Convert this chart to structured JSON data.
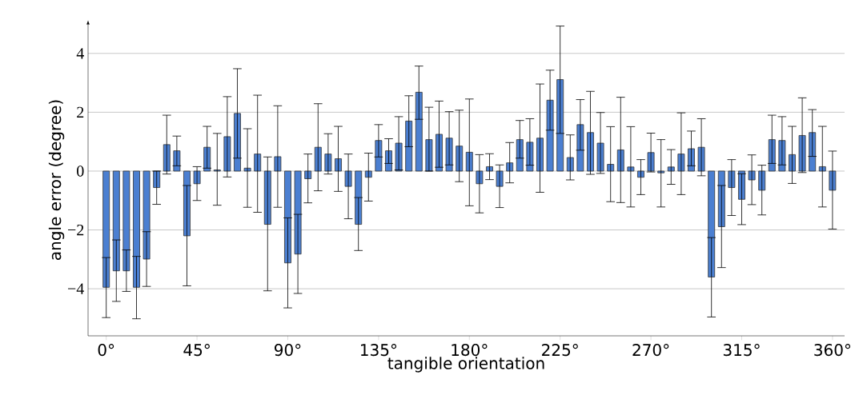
{
  "chart_data": {
    "type": "bar",
    "xlabel": "tangible orientation",
    "ylabel": "angle error (degree)",
    "x": [
      0,
      5,
      10,
      15,
      20,
      25,
      30,
      35,
      40,
      45,
      50,
      55,
      60,
      65,
      70,
      75,
      80,
      85,
      90,
      95,
      100,
      105,
      110,
      115,
      120,
      125,
      130,
      135,
      140,
      145,
      150,
      155,
      160,
      165,
      170,
      175,
      180,
      185,
      190,
      195,
      200,
      205,
      210,
      215,
      220,
      225,
      230,
      235,
      240,
      245,
      250,
      255,
      260,
      265,
      270,
      275,
      280,
      285,
      290,
      295,
      300,
      305,
      310,
      315,
      320,
      325,
      330,
      335,
      340,
      345,
      350,
      355,
      360
    ],
    "values": [
      -3.95,
      -3.39,
      -3.39,
      -3.95,
      -2.99,
      -0.56,
      0.9,
      0.69,
      -2.2,
      -0.43,
      0.81,
      0.04,
      1.17,
      1.96,
      0.1,
      0.58,
      -1.81,
      0.49,
      -3.12,
      -2.82,
      -0.26,
      0.81,
      0.58,
      0.42,
      -0.52,
      -1.81,
      -0.21,
      1.04,
      0.69,
      0.95,
      1.7,
      2.68,
      1.07,
      1.25,
      1.12,
      0.85,
      0.64,
      -0.43,
      0.15,
      -0.52,
      0.28,
      1.07,
      0.98,
      1.12,
      2.41,
      3.11,
      0.46,
      1.58,
      1.31,
      0.95,
      0.23,
      0.72,
      0.14,
      -0.21,
      0.63,
      -0.06,
      0.14,
      0.58,
      0.76,
      0.81,
      -3.6,
      -1.89,
      -0.56,
      -0.96,
      -0.3,
      -0.65,
      1.07,
      1.04,
      0.56,
      1.21,
      1.31,
      0.15,
      -0.65
    ],
    "errors": [
      [
        -4.98,
        -2.94
      ],
      [
        -4.43,
        -2.34
      ],
      [
        -4.09,
        -2.68
      ],
      [
        -5.02,
        -2.9
      ],
      [
        -3.92,
        -2.06
      ],
      [
        -1.13,
        0
      ],
      [
        -0.1,
        1.9
      ],
      [
        0.18,
        1.19
      ],
      [
        -3.9,
        -0.49
      ],
      [
        -1.0,
        0.15
      ],
      [
        0.1,
        1.52
      ],
      [
        -1.16,
        1.28
      ],
      [
        -0.2,
        2.53
      ],
      [
        0.44,
        3.48
      ],
      [
        -1.23,
        1.44
      ],
      [
        -1.4,
        2.58
      ],
      [
        -4.07,
        0.48
      ],
      [
        -1.23,
        2.22
      ],
      [
        -4.65,
        -1.59
      ],
      [
        -4.16,
        -1.47
      ],
      [
        -1.08,
        0.58
      ],
      [
        -0.67,
        2.29
      ],
      [
        -0.1,
        1.27
      ],
      [
        -0.69,
        1.52
      ],
      [
        -1.62,
        0.58
      ],
      [
        -2.7,
        -0.9
      ],
      [
        -1.02,
        0.61
      ],
      [
        0.48,
        1.58
      ],
      [
        0.26,
        1.1
      ],
      [
        0.04,
        1.85
      ],
      [
        0.83,
        2.56
      ],
      [
        1.76,
        3.57
      ],
      [
        0,
        2.17
      ],
      [
        0.13,
        2.38
      ],
      [
        0.21,
        2.02
      ],
      [
        -0.36,
        2.07
      ],
      [
        -1.18,
        2.45
      ],
      [
        -1.42,
        0.56
      ],
      [
        -0.29,
        0.59
      ],
      [
        -1.24,
        0.21
      ],
      [
        -0.4,
        0.97
      ],
      [
        0.44,
        1.72
      ],
      [
        0.2,
        1.78
      ],
      [
        -0.72,
        2.96
      ],
      [
        1.39,
        3.43
      ],
      [
        1.28,
        4.93
      ],
      [
        -0.3,
        1.23
      ],
      [
        0.71,
        2.43
      ],
      [
        -0.11,
        2.71
      ],
      [
        -0.08,
        1.99
      ],
      [
        -1.04,
        1.51
      ],
      [
        -1.07,
        2.51
      ],
      [
        -1.22,
        1.51
      ],
      [
        -0.8,
        0.39
      ],
      [
        -0.03,
        1.29
      ],
      [
        -1.22,
        1.07
      ],
      [
        -0.45,
        0.73
      ],
      [
        -0.8,
        1.98
      ],
      [
        0.18,
        1.36
      ],
      [
        -0.16,
        1.78
      ],
      [
        -4.96,
        -2.26
      ],
      [
        -3.28,
        -0.49
      ],
      [
        -1.51,
        0.39
      ],
      [
        -1.82,
        -0.09
      ],
      [
        -1.14,
        0.55
      ],
      [
        -1.49,
        0.2
      ],
      [
        0.26,
        1.9
      ],
      [
        0.21,
        1.85
      ],
      [
        -0.42,
        1.52
      ],
      [
        -0.05,
        2.49
      ],
      [
        0.5,
        2.09
      ],
      [
        -1.22,
        1.52
      ],
      [
        -1.97,
        0.68
      ]
    ],
    "color": "#4b7fd1",
    "xlim": [
      -9,
      366
    ],
    "ylim": [
      -5.6,
      5.0
    ],
    "xticks": [
      {
        "value": 0,
        "label": "0°"
      },
      {
        "value": 45,
        "label": "45°"
      },
      {
        "value": 90,
        "label": "90°"
      },
      {
        "value": 135,
        "label": "135°"
      },
      {
        "value": 180,
        "label": "180°"
      },
      {
        "value": 225,
        "label": "225°"
      },
      {
        "value": 270,
        "label": "270°"
      },
      {
        "value": 315,
        "label": "315°"
      },
      {
        "value": 360,
        "label": "360°"
      }
    ],
    "yticks": [
      {
        "value": -4,
        "label": "−4"
      },
      {
        "value": -2,
        "label": "−2"
      },
      0,
      2,
      4
    ],
    "grid": "y"
  }
}
